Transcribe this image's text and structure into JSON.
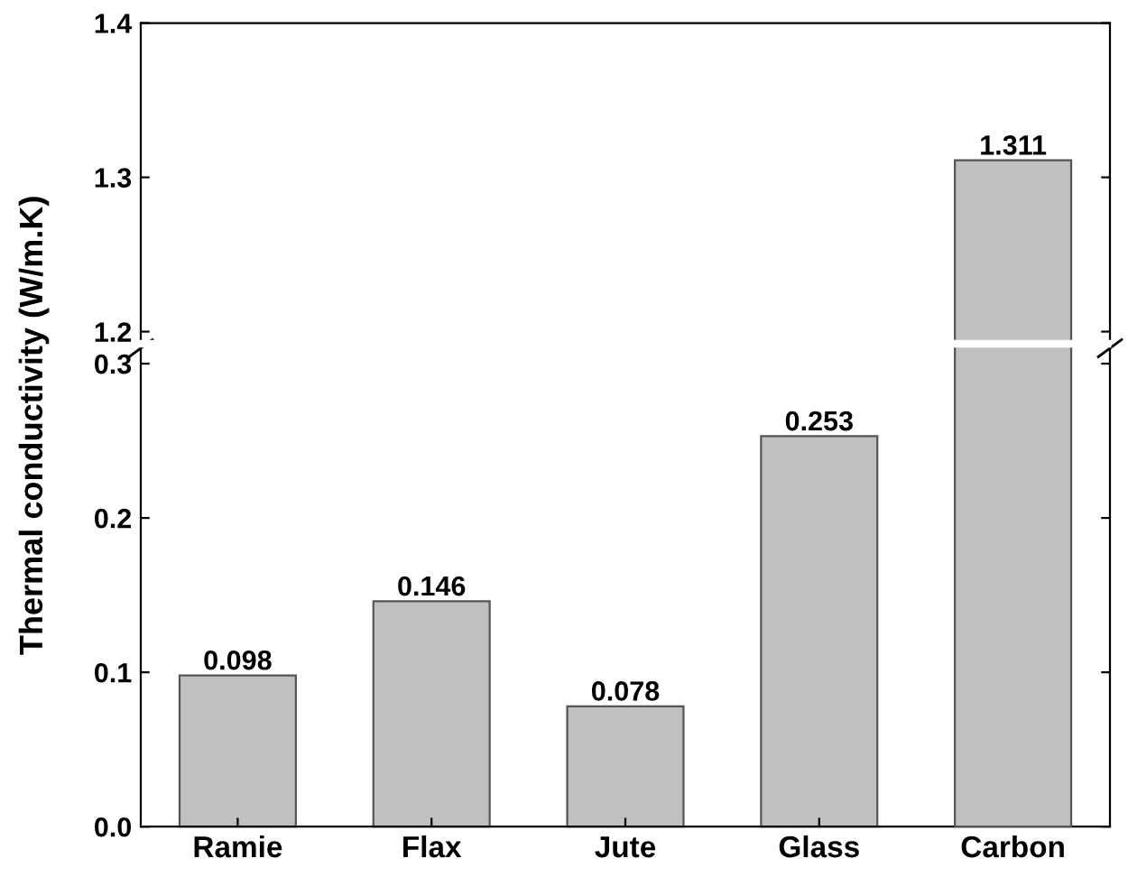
{
  "chart_data": [
    {
      "type": "bar",
      "ylabel": "Thermal conductivity (W/m.K)",
      "categories": [
        null,
        null,
        null,
        null,
        null
      ],
      "values": [
        null,
        null,
        null,
        null,
        1.311
      ],
      "value_labels": [
        null,
        null,
        null,
        null,
        "1.311"
      ],
      "color": "#c0c0c0",
      "ylim": [
        1.195,
        1.4
      ],
      "yticks": [
        1.2,
        1.3,
        1.4
      ],
      "tick_labels": "y",
      "grid": false,
      "legend": false
    },
    {
      "type": "bar",
      "categories": [
        "Ramie",
        "Flax",
        "Jute",
        "Glass",
        "Carbon"
      ],
      "values": [
        0.098,
        0.146,
        0.078,
        0.253,
        null
      ],
      "value_labels": [
        "0.098",
        "0.146",
        "0.078",
        "0.253",
        null
      ],
      "color": "#c0c0c0",
      "ylim": [
        0,
        0.31
      ],
      "yticks": [
        {
          "value": 0,
          "label": "0.0"
        },
        0.1,
        0.2,
        0.3
      ],
      "grid": false,
      "legend": false
    }
  ]
}
